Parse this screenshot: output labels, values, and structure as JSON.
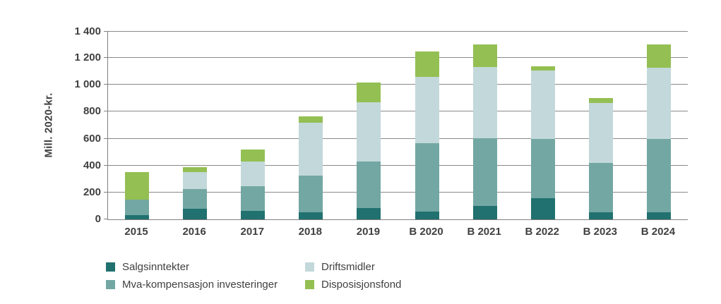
{
  "chart_data": {
    "type": "bar",
    "stacked": true,
    "title": "",
    "xlabel": "",
    "ylabel": "Mill. 2020-kr.",
    "categories": [
      "2015",
      "2016",
      "2017",
      "2018",
      "2019",
      "B 2020",
      "B 2021",
      "B 2022",
      "B 2023",
      "B 2024"
    ],
    "series": [
      {
        "name": "Salgsinntekter",
        "color": "#20716f",
        "values": [
          30,
          80,
          65,
          55,
          85,
          60,
          100,
          160,
          50,
          50
        ]
      },
      {
        "name": "Mva-kompensasjon investeringer",
        "color": "#73a7a3",
        "values": [
          115,
          145,
          180,
          270,
          345,
          505,
          505,
          440,
          370,
          550
        ]
      },
      {
        "name": "Driftsmidler",
        "color": "#c3d8da",
        "values": [
          0,
          125,
          185,
          395,
          440,
          495,
          530,
          505,
          445,
          530
        ]
      },
      {
        "name": "Disposisjonsfond",
        "color": "#94bf53",
        "values": [
          205,
          40,
          90,
          45,
          150,
          190,
          165,
          35,
          35,
          170
        ]
      }
    ],
    "totals": [
      350,
      390,
      520,
      765,
      1020,
      1250,
      1300,
      1140,
      900,
      1300
    ],
    "ylim": [
      0,
      1400
    ],
    "ytick_step": 200,
    "ytick_labels": [
      "0",
      "200",
      "400",
      "600",
      "800",
      "1 000",
      "1 200",
      "1 400"
    ],
    "grid": "horizontal",
    "legend_position": "bottom",
    "colors": {
      "axis": "#808080",
      "gridline": "#8a8a8a",
      "text": "#404040",
      "background": "#ffffff"
    }
  }
}
